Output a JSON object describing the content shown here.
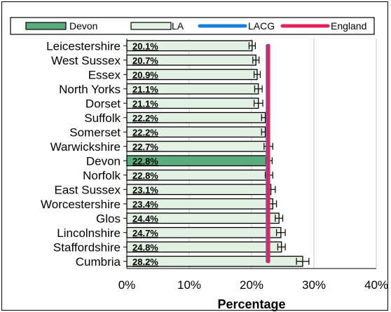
{
  "chart_data": {
    "type": "bar",
    "orientation": "horizontal",
    "title": "",
    "xlabel": "Percentage",
    "ylabel": "",
    "xlim": [
      0,
      40
    ],
    "x_ticks": [
      "0%",
      "10%",
      "20%",
      "30%",
      "40%"
    ],
    "grid": "vertical",
    "legend_position": "top",
    "legend": [
      {
        "label": "Devon",
        "type": "bar",
        "color": "#5bac7c"
      },
      {
        "label": "LA",
        "type": "bar",
        "color": "#e2f1e2"
      },
      {
        "label": "LACG",
        "type": "line",
        "color": "#1a7fd8"
      },
      {
        "label": "England",
        "type": "line",
        "color": "#e6225a"
      }
    ],
    "categories": [
      "Leicestershire",
      "West Sussex",
      "Essex",
      "North Yorks",
      "Dorset",
      "Suffolk",
      "Somerset",
      "Warwickshire",
      "Devon",
      "Norfolk",
      "East Sussex",
      "Worcestershire",
      "Glos",
      "Lincolnshire",
      "Staffordshire",
      "Cumbria"
    ],
    "values": [
      20.1,
      20.7,
      20.9,
      21.1,
      21.1,
      22.2,
      22.2,
      22.7,
      22.8,
      22.8,
      23.1,
      23.4,
      24.4,
      24.7,
      24.8,
      28.2
    ],
    "value_labels": [
      "20.1%",
      "20.7%",
      "20.9%",
      "21.1%",
      "21.1%",
      "22.2%",
      "22.2%",
      "22.7%",
      "22.8%",
      "22.8%",
      "23.1%",
      "23.4%",
      "24.4%",
      "24.7%",
      "24.8%",
      "28.2%"
    ],
    "error_bars": [
      [
        19.6,
        20.6
      ],
      [
        20.2,
        21.2
      ],
      [
        20.4,
        21.4
      ],
      [
        20.5,
        21.7
      ],
      [
        20.4,
        21.8
      ],
      [
        21.6,
        22.8
      ],
      [
        21.6,
        22.8
      ],
      [
        22.0,
        23.4
      ],
      [
        22.3,
        23.3
      ],
      [
        22.2,
        23.4
      ],
      [
        22.4,
        23.8
      ],
      [
        22.8,
        24.0
      ],
      [
        23.8,
        25.0
      ],
      [
        24.0,
        25.4
      ],
      [
        24.2,
        25.4
      ],
      [
        27.2,
        29.2
      ]
    ],
    "highlight_category": "Devon",
    "reference_lines": [
      {
        "name": "LACG",
        "value": 22.5,
        "color": "#1a7fd8"
      },
      {
        "name": "England",
        "value": 22.7,
        "color": "#e6225a"
      }
    ]
  }
}
